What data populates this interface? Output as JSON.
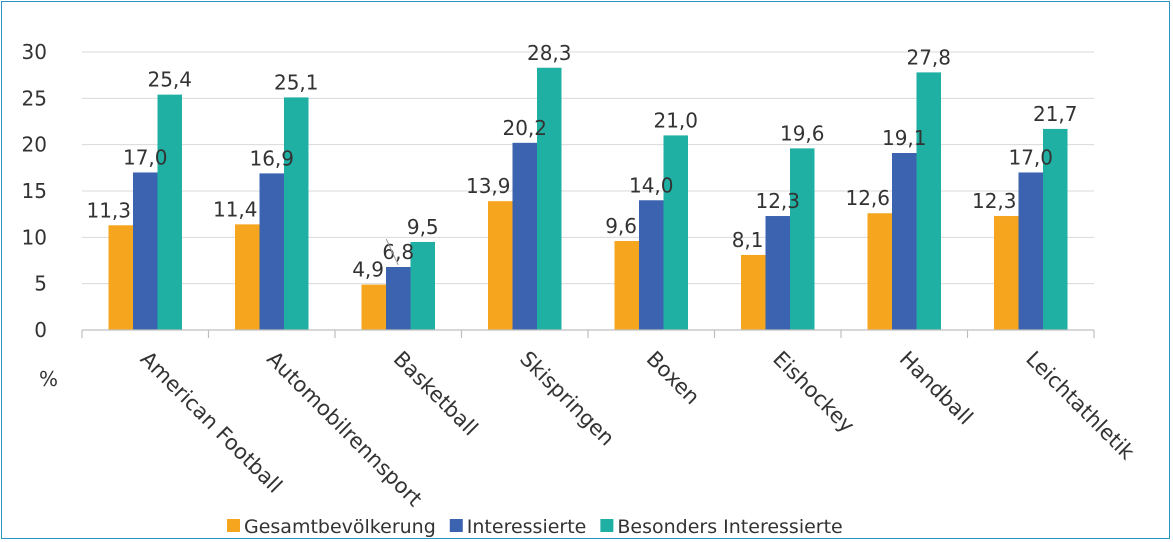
{
  "chart_data": {
    "type": "bar",
    "ylabel": "%",
    "ylim": [
      0,
      30
    ],
    "yticks": [
      0,
      5,
      10,
      15,
      20,
      25,
      30
    ],
    "grid": true,
    "legend_position": "bottom",
    "categories": [
      "American Football",
      "Automobilrennsport",
      "Basketball",
      "Skispringen",
      "Boxen",
      "Eishockey",
      "Handball",
      "Leichtathletik"
    ],
    "series": [
      {
        "name": "Gesamtbevölkerung",
        "color": "#f5a51e",
        "values": [
          11.3,
          11.4,
          4.9,
          13.9,
          9.6,
          8.1,
          12.6,
          12.3
        ],
        "labels": [
          "11,3",
          "11,4",
          "4,9",
          "13,9",
          "9,6",
          "8,1",
          "12,6",
          "12,3"
        ]
      },
      {
        "name": "Interessierte",
        "color": "#3b63b0",
        "values": [
          17.0,
          16.9,
          6.8,
          20.2,
          14.0,
          12.3,
          19.1,
          17.0
        ],
        "labels": [
          "17,0",
          "16,9",
          "6,8",
          "20,2",
          "14,0",
          "12,3",
          "19,1",
          "17,0"
        ]
      },
      {
        "name": "Besonders Interessierte",
        "color": "#1fb0a3",
        "values": [
          25.4,
          25.1,
          9.5,
          28.3,
          21.0,
          19.6,
          27.8,
          21.7
        ],
        "labels": [
          "25,4",
          "25,1",
          "9,5",
          "28,3",
          "21,0",
          "19,6",
          "27,8",
          "21,7"
        ]
      }
    ]
  }
}
